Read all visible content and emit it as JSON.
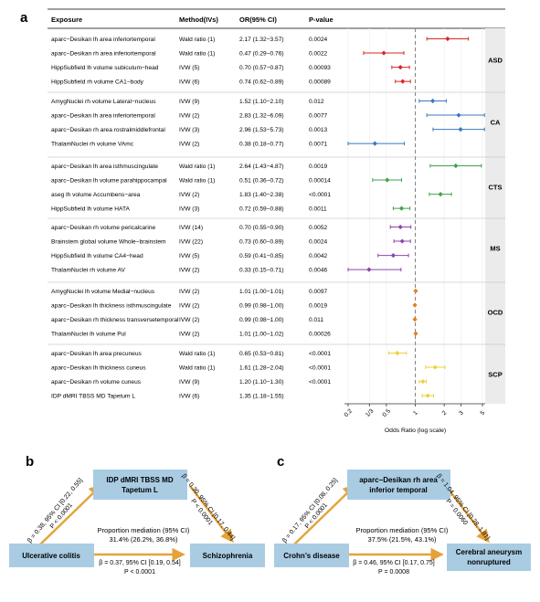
{
  "panel_labels": {
    "a": "a",
    "b": "b",
    "c": "c"
  },
  "table_headers": {
    "exposure": "Exposure",
    "method": "Method(IVs)",
    "or_ci": "OR(95% CI)",
    "pvalue": "P-value"
  },
  "chart_data": {
    "type": "forest",
    "xlabel": "Odds Ratio (log scale)",
    "xscale": "log",
    "xlim": [
      0.2,
      5
    ],
    "x_ticks": [
      0.2,
      0.333,
      0.5,
      1,
      2,
      3,
      5
    ],
    "x_tick_labels": [
      "0.2",
      "1/3",
      "0.5",
      "1",
      "2",
      "3",
      "5"
    ],
    "reference_line": 1,
    "groups": [
      {
        "name": "ASD",
        "color": "#d62728",
        "rows": [
          {
            "exposure": "aparc−Desikan lh area inferiortemporal",
            "method": "Wald ratio (1)",
            "or_text": "2.17 (1.32−3.57)",
            "p": "0.0024",
            "or": 2.17,
            "lo": 1.32,
            "hi": 3.57
          },
          {
            "exposure": "aparc−Desikan rh area inferiortemporal",
            "method": "Wald ratio (1)",
            "or_text": "0.47 (0.29−0.76)",
            "p": "0.0022",
            "or": 0.47,
            "lo": 0.29,
            "hi": 0.76
          },
          {
            "exposure": "HippSubfield lh volume subiculum−head",
            "method": "IVW (5)",
            "or_text": "0.70 (0.57−0.87)",
            "p": "0.00093",
            "or": 0.7,
            "lo": 0.57,
            "hi": 0.87
          },
          {
            "exposure": "HippSubfield rh volume CA1−body",
            "method": "IVW (6)",
            "or_text": "0.74 (0.62−0.89)",
            "p": "0.00089",
            "or": 0.74,
            "lo": 0.62,
            "hi": 0.89
          }
        ]
      },
      {
        "name": "CA",
        "color": "#3a78c2",
        "rows": [
          {
            "exposure": "AmygNuclei rh volume Lateral−nucleus",
            "method": "IVW (9)",
            "or_text": "1.52 (1.10−2.10)",
            "p": "0.012",
            "or": 1.52,
            "lo": 1.1,
            "hi": 2.1
          },
          {
            "exposure": "aparc−Desikan lh area inferiortemporal",
            "method": "IVW (2)",
            "or_text": "2.83 (1.32−6.09)",
            "p": "0.0077",
            "or": 2.83,
            "lo": 1.32,
            "hi": 6.09
          },
          {
            "exposure": "aparc−Desikan rh area rostralmiddlefrontal",
            "method": "IVW (3)",
            "or_text": "2.96 (1.53−5.73)",
            "p": "0.0013",
            "or": 2.96,
            "lo": 1.53,
            "hi": 5.73
          },
          {
            "exposure": "ThalamNuclei rh volume VAmc",
            "method": "IVW (2)",
            "or_text": "0.38 (0.18−0.77)",
            "p": "0.0071",
            "or": 0.38,
            "lo": 0.18,
            "hi": 0.77
          }
        ]
      },
      {
        "name": "CTS",
        "color": "#3fa34d",
        "rows": [
          {
            "exposure": "aparc−Desikan lh area isthmuscingulate",
            "method": "Wald ratio (1)",
            "or_text": "2.64 (1.43−4.87)",
            "p": "0.0019",
            "or": 2.64,
            "lo": 1.43,
            "hi": 4.87
          },
          {
            "exposure": "aparc−Desikan lh volume parahippocampal",
            "method": "Wald ratio (1)",
            "or_text": "0.51 (0.36−0.72)",
            "p": "0.00014",
            "or": 0.51,
            "lo": 0.36,
            "hi": 0.72
          },
          {
            "exposure": "aseg lh volume Accumbens−area",
            "method": "IVW (2)",
            "or_text": "1.83 (1.40−2.38)",
            "p": "<0.0001",
            "or": 1.83,
            "lo": 1.4,
            "hi": 2.38
          },
          {
            "exposure": "HippSubfield lh volume HATA",
            "method": "IVW (3)",
            "or_text": "0.72 (0.59−0.88)",
            "p": "0.0011",
            "or": 0.72,
            "lo": 0.59,
            "hi": 0.88
          }
        ]
      },
      {
        "name": "MS",
        "color": "#8e44ad",
        "rows": [
          {
            "exposure": "aparc−Desikan rh volume pericalcarine",
            "method": "IVW (14)",
            "or_text": "0.70 (0.55−0.90)",
            "p": "0.0052",
            "or": 0.7,
            "lo": 0.55,
            "hi": 0.9
          },
          {
            "exposure": "Brainstem global volume Whole−brainstem",
            "method": "IVW (22)",
            "or_text": "0.73 (0.60−0.89)",
            "p": "0.0024",
            "or": 0.73,
            "lo": 0.6,
            "hi": 0.89
          },
          {
            "exposure": "HippSubfield lh volume CA4−head",
            "method": "IVW (5)",
            "or_text": "0.59 (0.41−0.85)",
            "p": "0.0042",
            "or": 0.59,
            "lo": 0.41,
            "hi": 0.85
          },
          {
            "exposure": "ThalamNuclei rh volume AV",
            "method": "IVW (2)",
            "or_text": "0.33 (0.15−0.71)",
            "p": "0.0046",
            "or": 0.33,
            "lo": 0.15,
            "hi": 0.71
          }
        ]
      },
      {
        "name": "OCD",
        "color": "#e67e22",
        "rows": [
          {
            "exposure": "AmygNuclei lh volume Medial−nucleus",
            "method": "IVW (2)",
            "or_text": "1.01 (1.00−1.01)",
            "p": "0.0097",
            "or": 1.01,
            "lo": 1.0,
            "hi": 1.01
          },
          {
            "exposure": "aparc−Desikan lh thickness isthmuscingulate",
            "method": "IVW (2)",
            "or_text": "0.99 (0.98−1.00)",
            "p": "0.0019",
            "or": 0.99,
            "lo": 0.98,
            "hi": 1.0
          },
          {
            "exposure": "aparc−Desikan rh thickness transversetemporal",
            "method": "IVW (2)",
            "or_text": "0.99 (0.98−1.00)",
            "p": "0.011",
            "or": 0.99,
            "lo": 0.98,
            "hi": 1.0
          },
          {
            "exposure": "ThalamNuclei lh volume Pul",
            "method": "IVW (2)",
            "or_text": "1.01 (1.00−1.02)",
            "p": "0.00026",
            "or": 1.01,
            "lo": 1.0,
            "hi": 1.02
          }
        ]
      },
      {
        "name": "SCP",
        "color": "#e8d43a",
        "rows": [
          {
            "exposure": "aparc−Desikan lh area precuneus",
            "method": "Wald ratio (1)",
            "or_text": "0.65 (0.53−0.81)",
            "p": "<0.0001",
            "or": 0.65,
            "lo": 0.53,
            "hi": 0.81
          },
          {
            "exposure": "aparc−Desikan lh thickness cuneus",
            "method": "Wald ratio (1)",
            "or_text": "1.61 (1.28−2.04)",
            "p": "<0.0001",
            "or": 1.61,
            "lo": 1.28,
            "hi": 2.04
          },
          {
            "exposure": "aparc−Desikan rh volume cuneus",
            "method": "IVW (9)",
            "or_text": "1.20 (1.10−1.30)",
            "p": "<0.0001",
            "or": 1.2,
            "lo": 1.1,
            "hi": 1.3
          },
          {
            "exposure": "IDP dMRI TBSS MD Tapetum L",
            "method": "IVW (6)",
            "or_text": "1.35 (1.18−1.55)",
            "p": "",
            "or": 1.35,
            "lo": 1.18,
            "hi": 1.55
          }
        ]
      }
    ]
  },
  "mediation": {
    "box_fill": "#a9cce3",
    "arrow_color": "#e5a23a",
    "b": {
      "mediator": [
        "IDP dMRI TBSS MD",
        "Tapetum L"
      ],
      "exposure": "Ulcerative colitis",
      "outcome": "Schizophrenia",
      "left_path": [
        "β = 0.38, 95% CI [0.22, 0.55]",
        "P < 0.0001"
      ],
      "right_path": [
        "β = 0.30, 95% CI [0.17, 0.44]",
        "P < 0.0001"
      ],
      "direct_path": [
        "β = 0.37, 95% CI [0.19, 0.54]",
        "P < 0.0001"
      ],
      "proportion": [
        "Proportion mediation (95% CI)",
        "31.4% (26.2%, 36.8%)"
      ]
    },
    "c": {
      "mediator": [
        "aparc−Desikan rh area",
        "inferior temporal"
      ],
      "exposure": "Crohn’s disease",
      "outcome": [
        "Cerebral aneurysm",
        "nonruptured"
      ],
      "left_path": [
        "β = 0.17, 95% CI [0.08, 0.25]",
        "P < 0.0001"
      ],
      "right_path": [
        "β = 1.04, 95% CI [0.28, 1.81]",
        "P = 0.0060"
      ],
      "direct_path": [
        "β = 0.46, 95% CI [0.17, 0.75]",
        "P = 0.0008"
      ],
      "proportion": [
        "Proportion mediation (95% CI)",
        "37.5% (21.5%, 43.1%)"
      ]
    }
  }
}
